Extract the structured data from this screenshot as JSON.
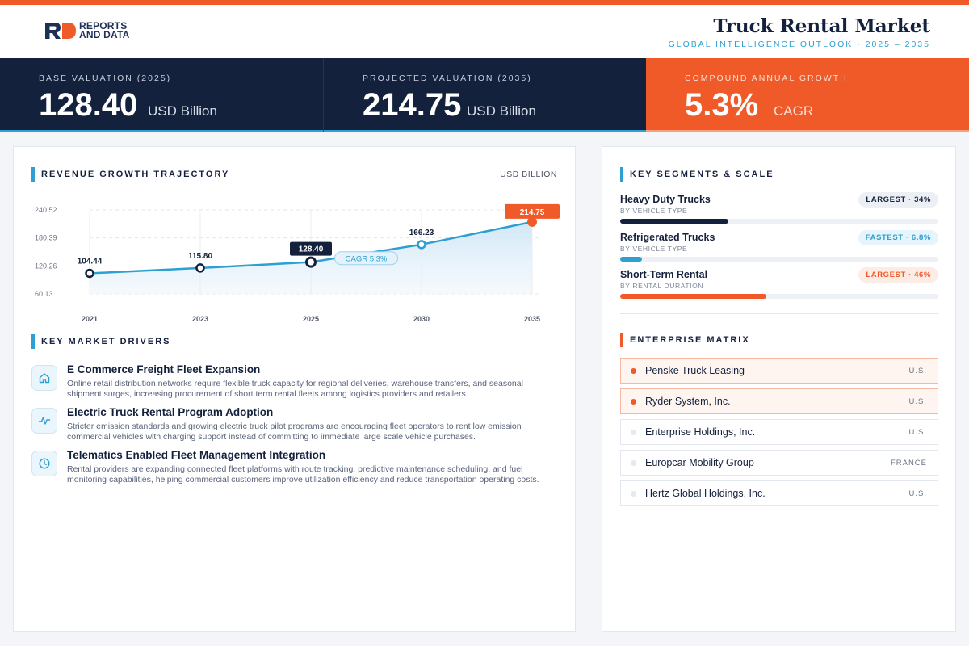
{
  "brand": {
    "logo_text_line1": "REPORTS",
    "logo_text_line2": "AND DATA"
  },
  "header": {
    "title": "Truck Rental Market",
    "subtitle": "GLOBAL INTELLIGENCE OUTLOOK · 2025 – 2035"
  },
  "kpis": [
    {
      "label": "BASE VALUATION (2025)",
      "value": "128.40",
      "unit": "USD Billion"
    },
    {
      "label": "PROJECTED VALUATION (2035)",
      "value": "214.75",
      "unit": "USD Billion"
    },
    {
      "label": "COMPOUND ANNUAL GROWTH",
      "value": "5.3%",
      "unit": "CAGR"
    }
  ],
  "revenue": {
    "title": "REVENUE GROWTH TRAJECTORY",
    "unit_label": "USD BILLION",
    "cagr_badge": "CAGR 5.3%"
  },
  "chart_data": {
    "type": "area",
    "categories": [
      "2021",
      "2023",
      "2025",
      "2030",
      "2035"
    ],
    "values": [
      104.44,
      115.8,
      128.4,
      166.23,
      214.75
    ],
    "value_labels": [
      "104.44",
      "115.80",
      "128.40",
      "166.23",
      "214.75"
    ],
    "y_ticks": [
      60.13,
      120.26,
      180.39,
      240.52
    ],
    "y_tick_labels": [
      "60.13",
      "120.26",
      "180.39",
      "240.52"
    ],
    "ylim": [
      60.13,
      240.52
    ],
    "grid": true,
    "highlight": {
      "base_index": 2,
      "projected_index": 4
    },
    "colors": {
      "line": "#2e9fd1",
      "fill": "#dcedf8",
      "navy": "#14213d",
      "orange": "#f05a28"
    }
  },
  "drivers": {
    "title": "KEY MARKET DRIVERS",
    "items": [
      {
        "icon": "home-icon",
        "title": "E Commerce Freight Fleet Expansion",
        "desc": "Online retail distribution networks require flexible truck capacity for regional deliveries, warehouse transfers, and seasonal shipment surges, increasing procurement of short term rental fleets among logistics providers and retailers."
      },
      {
        "icon": "pulse-icon",
        "title": "Electric Truck Rental Program Adoption",
        "desc": "Stricter emission standards and growing electric truck pilot programs are encouraging fleet operators to rent low emission commercial vehicles with charging support instead of committing to immediate large scale vehicle purchases."
      },
      {
        "icon": "clock-icon",
        "title": "Telematics Enabled Fleet Management Integration",
        "desc": "Rental providers are expanding connected fleet platforms with route tracking, predictive maintenance scheduling, and fuel monitoring capabilities, helping commercial customers improve utilization efficiency and reduce transportation operating costs."
      }
    ]
  },
  "segments": {
    "title": "KEY SEGMENTS & SCALE",
    "items": [
      {
        "name": "Heavy Duty Trucks",
        "sub": "BY VEHICLE TYPE",
        "badge": "LARGEST · 34%",
        "share": 0.34,
        "bar_color": "#14213d",
        "badge_bg": "#eceff4",
        "badge_color": "#14213d"
      },
      {
        "name": "Refrigerated Trucks",
        "sub": "BY VEHICLE TYPE",
        "badge": "FASTEST · 6.8%",
        "share": 0.068,
        "bar_color": "#2e9fd1",
        "badge_bg": "#e6f4fb",
        "badge_color": "#2e9fd1"
      },
      {
        "name": "Short-Term Rental",
        "sub": "BY RENTAL DURATION",
        "badge": "LARGEST · 46%",
        "share": 0.46,
        "bar_color": "#f05a28",
        "badge_bg": "#fdece5",
        "badge_color": "#f05a28"
      }
    ]
  },
  "enterprise": {
    "title": "ENTERPRISE MATRIX",
    "items": [
      {
        "name": "Penske Truck Leasing",
        "country": "U.S.",
        "highlight": true
      },
      {
        "name": "Ryder System, Inc.",
        "country": "U.S.",
        "highlight": true
      },
      {
        "name": "Enterprise Holdings, Inc.",
        "country": "U.S.",
        "highlight": false
      },
      {
        "name": "Europcar Mobility Group",
        "country": "FRANCE",
        "highlight": false
      },
      {
        "name": "Hertz Global Holdings, Inc.",
        "country": "U.S.",
        "highlight": false
      }
    ]
  }
}
